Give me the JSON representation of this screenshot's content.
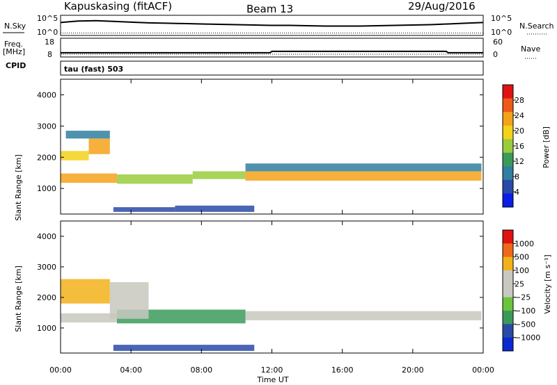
{
  "header": {
    "station": "Kapuskasing (fitACF)",
    "beam": "Beam 13",
    "date": "29/Aug/2016"
  },
  "noise_panel": {
    "left_label": "N.Sky",
    "right_label": "N.Search",
    "y_ticks_left": [
      "10^5",
      "10^0"
    ],
    "y_ticks_right": [
      "10^5",
      "10^0"
    ]
  },
  "freq_panel": {
    "left_label_1": "Freq.",
    "left_label_2": "[MHz]",
    "cpid_label": "CPID",
    "right_label": "Nave",
    "y_ticks_left": [
      "18",
      "8"
    ],
    "y_ticks_right": [
      "60",
      "0"
    ]
  },
  "mode_label": "tau (fast) 503",
  "chart_data": [
    {
      "type": "line",
      "name": "noise",
      "x_unit": "hours UT",
      "x": [
        0,
        1,
        2,
        3,
        4,
        5,
        6,
        7,
        8,
        9,
        10,
        11,
        12,
        13,
        14,
        15,
        16,
        17,
        18,
        19,
        20,
        21,
        22,
        23,
        24
      ],
      "series": [
        {
          "values": [
            3.2,
            3.6,
            3.7,
            3.5,
            3.3,
            3.1,
            3.0,
            2.9,
            2.8,
            2.7,
            2.6,
            2.5,
            2.4,
            2.4,
            2.3,
            2.2,
            2.2,
            2.2,
            2.3,
            2.4,
            2.5,
            2.6,
            2.8,
            3.0,
            3.2
          ]
        },
        {
          "values": [
            0.3,
            0.3,
            0.3,
            0.3,
            0.3,
            0.3,
            0.3,
            0.3,
            0.3,
            0.3,
            0.3,
            0.3,
            0.3,
            0.3,
            0.3,
            0.3,
            0.3,
            0.3,
            0.3,
            0.3,
            0.3,
            0.3,
            0.3,
            0.3,
            0.3
          ]
        }
      ]
    },
    {
      "type": "line",
      "name": "frequency",
      "x": [
        0,
        4,
        8,
        11.9,
        12,
        16,
        20,
        21.9,
        22,
        24
      ],
      "values": [
        9.9,
        9.9,
        9.9,
        9.9,
        10.8,
        10.8,
        10.8,
        10.8,
        9.9,
        9.9
      ]
    },
    {
      "type": "heatmap",
      "title": "Power",
      "ylabel": "Slant Range [km]",
      "xlabel": "Time UT",
      "xlim": [
        0,
        24
      ],
      "ylim": [
        180,
        4500
      ],
      "x_ticks": [
        "00:00",
        "04:00",
        "08:00",
        "12:00",
        "16:00",
        "20:00",
        "00:00"
      ],
      "y_ticks": [
        1000,
        2000,
        3000,
        4000
      ],
      "colorbar_label": "Power [dB]",
      "colorbar_ticks": [
        4,
        8,
        12,
        16,
        20,
        24,
        28
      ],
      "colorbar_colors": [
        "#0a1ee6",
        "#2a4aa8",
        "#2f7fa0",
        "#3b9a5a",
        "#9acb3c",
        "#f3d21a",
        "#f4a21a",
        "#ee5a1a",
        "#e01212"
      ],
      "regions": [
        {
          "t0": 0.0,
          "t1": 3.2,
          "r0": 1180,
          "r1": 1480,
          "level": 0.85
        },
        {
          "t0": 3.2,
          "t1": 7.5,
          "r0": 1150,
          "r1": 1450,
          "level": 0.6
        },
        {
          "t0": 7.5,
          "t1": 10.5,
          "r0": 1300,
          "r1": 1550,
          "level": 0.5
        },
        {
          "t0": 10.5,
          "t1": 23.9,
          "r0": 1250,
          "r1": 1550,
          "level": 0.8
        },
        {
          "t0": 0.0,
          "t1": 1.6,
          "r0": 1900,
          "r1": 2200,
          "level": 0.7
        },
        {
          "t0": 1.6,
          "t1": 2.8,
          "r0": 2100,
          "r1": 2600,
          "level": 0.75
        },
        {
          "t0": 0.3,
          "t1": 2.8,
          "r0": 2600,
          "r1": 2850,
          "level": 0.3
        },
        {
          "t0": 10.5,
          "t1": 23.9,
          "r0": 1550,
          "r1": 1800,
          "level": 0.3
        },
        {
          "t0": 3.0,
          "t1": 6.5,
          "r0": 250,
          "r1": 400,
          "level": 0.15
        },
        {
          "t0": 6.5,
          "t1": 11.0,
          "r0": 250,
          "r1": 450,
          "level": 0.2
        }
      ]
    },
    {
      "type": "heatmap",
      "title": "Velocity",
      "ylabel": "Slant Range [km]",
      "xlabel": "Time UT",
      "xlim": [
        0,
        24
      ],
      "ylim": [
        180,
        4500
      ],
      "x_ticks": [
        "00:00",
        "04:00",
        "08:00",
        "12:00",
        "16:00",
        "20:00",
        "00:00"
      ],
      "y_ticks": [
        1000,
        2000,
        3000,
        4000
      ],
      "colorbar_label": "Velocity [m s⁻¹]",
      "colorbar_ticks": [
        "1000",
        "500",
        "100",
        "25",
        "−25",
        "−100",
        "−500",
        "−1000"
      ],
      "colorbar_colors": [
        "#0a2ad0",
        "#2a4aa8",
        "#3b9a5a",
        "#6cc43a",
        "#c8c8c0",
        "#c8c8c0",
        "#f3b21a",
        "#ee6a1a",
        "#e01212"
      ],
      "regions": [
        {
          "t0": 0.0,
          "t1": 3.2,
          "r0": 1180,
          "r1": 1480,
          "level": 0.5
        },
        {
          "t0": 3.2,
          "t1": 10.5,
          "r0": 1150,
          "r1": 1600,
          "level": 0.3
        },
        {
          "t0": 10.5,
          "t1": 23.9,
          "r0": 1250,
          "r1": 1550,
          "level": 0.5
        },
        {
          "t0": 0.0,
          "t1": 2.8,
          "r0": 1800,
          "r1": 2600,
          "level": 0.75
        },
        {
          "t0": 2.8,
          "t1": 5.0,
          "r0": 1300,
          "r1": 2500,
          "level": 0.5
        },
        {
          "t0": 3.0,
          "t1": 11.0,
          "r0": 250,
          "r1": 450,
          "level": 0.2
        }
      ]
    }
  ]
}
